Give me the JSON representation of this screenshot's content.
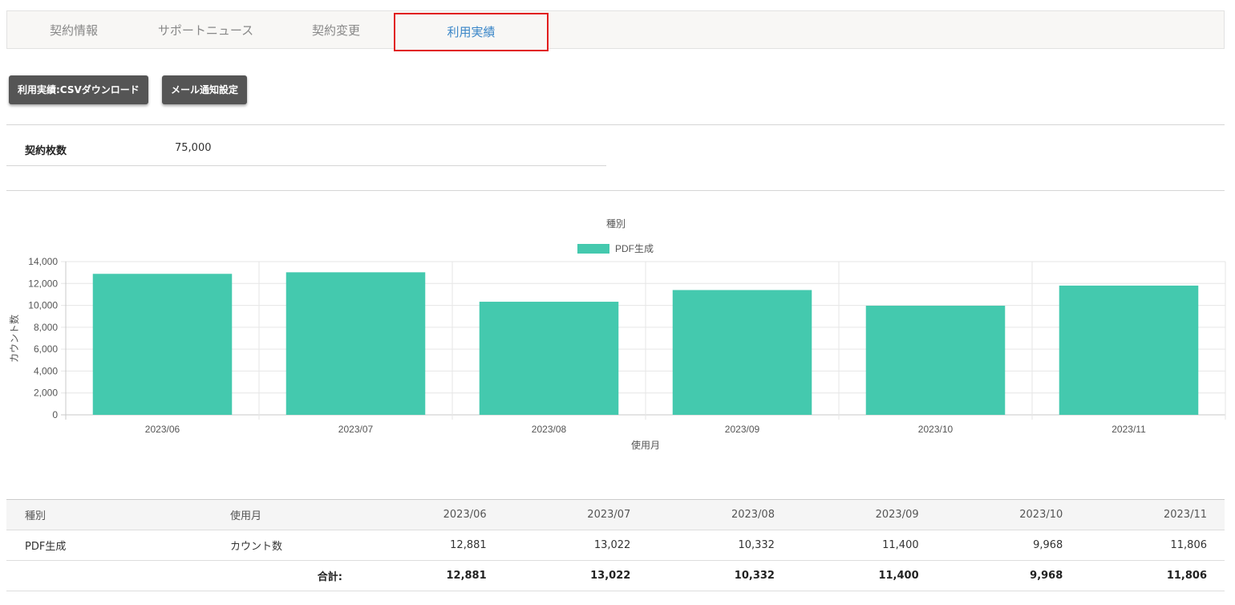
{
  "tabs": [
    {
      "label": "契約情報",
      "active": false
    },
    {
      "label": "サポートニュース",
      "active": false
    },
    {
      "label": "契約変更",
      "active": false
    },
    {
      "label": "利用実績",
      "active": true
    }
  ],
  "buttons": {
    "csv_download": "利用実績:CSVダウンロード",
    "mail_settings": "メール通知設定"
  },
  "contract": {
    "label": "契約枚数",
    "value": "75,000"
  },
  "chart_data": {
    "type": "bar",
    "title": "種別",
    "legend": [
      {
        "name": "PDF生成",
        "color": "#44c9ae"
      }
    ],
    "legend_position": "top-center",
    "categories": [
      "2023/06",
      "2023/07",
      "2023/08",
      "2023/09",
      "2023/10",
      "2023/11"
    ],
    "series": [
      {
        "name": "PDF生成",
        "values": [
          12881,
          13022,
          10332,
          11400,
          9968,
          11806
        ]
      }
    ],
    "xlabel": "使用月",
    "ylabel": "カウント数",
    "ylim": [
      0,
      14000
    ],
    "yticks": [
      "0",
      "2,000",
      "4,000",
      "6,000",
      "8,000",
      "10,000",
      "12,000",
      "14,000"
    ],
    "grid": true,
    "bar_color": "#44c9ae"
  },
  "table": {
    "headers": [
      "種別",
      "使用月",
      "2023/06",
      "2023/07",
      "2023/08",
      "2023/09",
      "2023/10",
      "2023/11"
    ],
    "rows": [
      [
        "PDF生成",
        "カウント数",
        "12,881",
        "13,022",
        "10,332",
        "11,400",
        "9,968",
        "11,806"
      ]
    ],
    "total_label": "合計:",
    "totals": [
      "12,881",
      "13,022",
      "10,332",
      "11,400",
      "9,968",
      "11,806"
    ]
  }
}
